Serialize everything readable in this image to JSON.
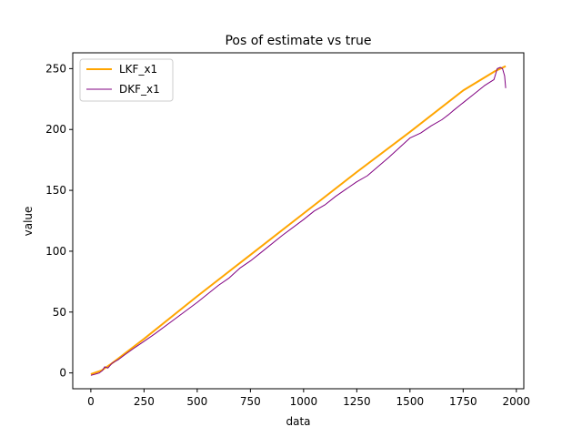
{
  "chart_data": {
    "type": "line",
    "title": "Pos of estimate vs true",
    "xlabel": "data",
    "ylabel": "value",
    "xlim": [
      -85,
      2035
    ],
    "ylim": [
      -13,
      263
    ],
    "xticks": [
      0,
      250,
      500,
      750,
      1000,
      1250,
      1500,
      1750,
      2000
    ],
    "yticks": [
      0,
      50,
      100,
      150,
      200,
      250
    ],
    "grid": false,
    "legend_position": "top-left",
    "series": [
      {
        "name": "LKF_x1",
        "color": "#ffa500",
        "x": [
          0,
          50,
          100,
          250,
          500,
          750,
          1000,
          1250,
          1500,
          1750,
          1900,
          1950
        ],
        "y": [
          -1,
          2,
          8,
          28,
          63,
          97,
          131,
          165,
          198,
          232,
          248,
          252
        ]
      },
      {
        "name": "DKF_x1",
        "color": "#800080",
        "x": [
          0,
          20,
          40,
          55,
          65,
          80,
          100,
          130,
          160,
          200,
          250,
          300,
          400,
          500,
          600,
          650,
          700,
          750,
          800,
          900,
          1000,
          1050,
          1100,
          1150,
          1200,
          1250,
          1300,
          1400,
          1500,
          1550,
          1600,
          1650,
          1680,
          1700,
          1750,
          1800,
          1850,
          1895,
          1900,
          1910,
          1925,
          1935,
          1945,
          1950
        ],
        "y": [
          -2,
          -1,
          0,
          2,
          5,
          4,
          8,
          11,
          15,
          20,
          26,
          32,
          45,
          58,
          72,
          78,
          86,
          92,
          99,
          113,
          126,
          133,
          138,
          145,
          151,
          157,
          162,
          177,
          193,
          197,
          203,
          208,
          212,
          215,
          222,
          229,
          236,
          241,
          244,
          250,
          251,
          250,
          244,
          234
        ]
      }
    ]
  }
}
